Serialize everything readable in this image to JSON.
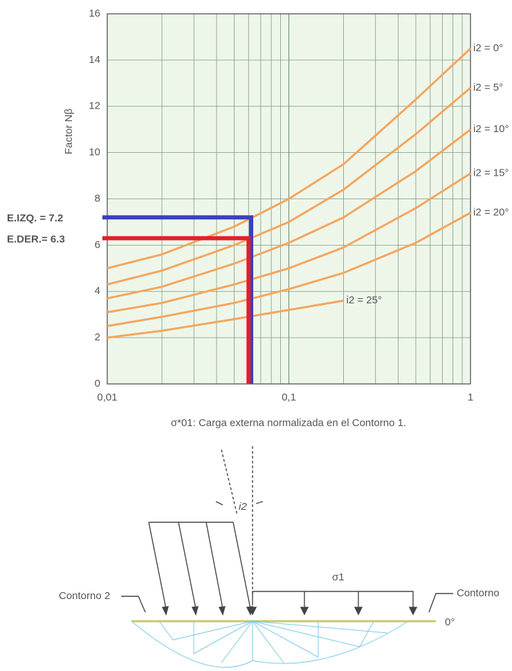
{
  "chart_data": {
    "type": "line",
    "y_label": "Factor Nβ",
    "x_label": "σ*01: Carga externa normalizada en el Contorno 1.",
    "log_x": true,
    "grid": true,
    "xlim": [
      0.01,
      1
    ],
    "ylim": [
      0,
      16
    ],
    "xticks": [
      {
        "value": 0.01,
        "label": "0,01"
      },
      {
        "value": 0.1,
        "label": "0,1"
      },
      1
    ],
    "yticks": [
      0,
      2,
      4,
      6,
      8,
      10,
      12,
      14,
      16
    ],
    "x": [
      0.01,
      0.02,
      0.05,
      0.1,
      0.2,
      0.5,
      1
    ],
    "series": [
      {
        "name": "i2 = 0°",
        "color": "#f5a55c",
        "values": [
          5.0,
          5.6,
          6.8,
          8.0,
          9.5,
          12.3,
          14.5
        ]
      },
      {
        "name": "i2 = 5°",
        "color": "#f5a55c",
        "values": [
          4.3,
          4.9,
          6.0,
          7.0,
          8.4,
          10.8,
          12.8
        ]
      },
      {
        "name": "i2 = 10°",
        "color": "#f5a55c",
        "values": [
          3.7,
          4.2,
          5.2,
          6.1,
          7.2,
          9.2,
          11.0
        ]
      },
      {
        "name": "i2 = 15°",
        "color": "#f5a55c",
        "values": [
          3.1,
          3.5,
          4.3,
          5.0,
          5.9,
          7.6,
          9.1
        ]
      },
      {
        "name": "i2 = 20°",
        "color": "#f5a55c",
        "values": [
          2.5,
          2.9,
          3.5,
          4.1,
          4.8,
          6.1,
          7.4
        ]
      },
      {
        "name": "i2 = 25°",
        "color": "#f5a55c",
        "values": [
          2.0,
          2.3,
          2.8,
          3.2,
          3.6,
          null,
          null
        ]
      }
    ],
    "annotations": [
      {
        "label": "E.IZQ. = 7.2",
        "value": 7.2,
        "x": 0.062,
        "color": "#3b3fbf"
      },
      {
        "label": "E.DER.= 6.3",
        "value": 6.3,
        "x": 0.06,
        "color": "#e0202a"
      }
    ]
  },
  "diagram": {
    "angle_label": "i2",
    "load_label": "σ1",
    "left_label": "Contorno 2",
    "right_label": "Contorno",
    "right_angle_label": "0°"
  }
}
